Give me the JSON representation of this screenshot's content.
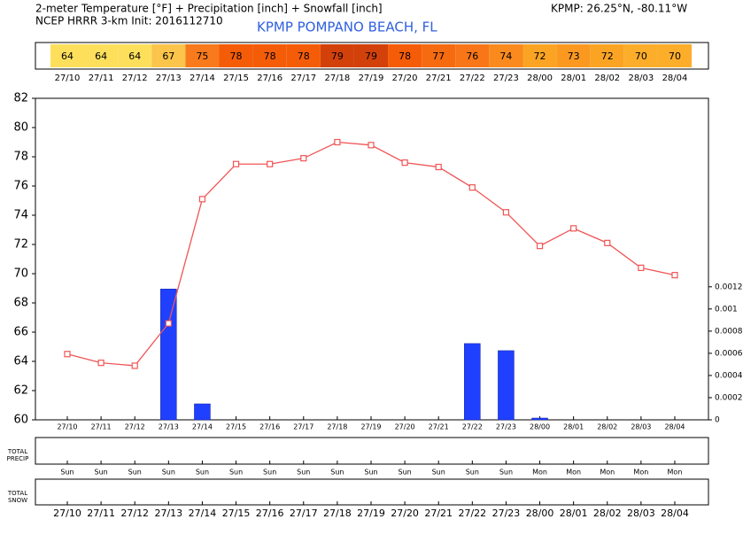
{
  "header": {
    "title": "2-meter Temperature [°F] + Precipitation [inch] + Snowfall [inch]",
    "model": "NCEP HRRR 3-km Init: 2016112710",
    "station": "KPMP POMPANO BEACH, FL",
    "location": "KPMP: 26.25°N, -80.11°W"
  },
  "chart_data": [
    {
      "type": "strip",
      "categories": [
        "27/10",
        "27/11",
        "27/12",
        "27/13",
        "27/14",
        "27/15",
        "27/16",
        "27/17",
        "27/18",
        "27/19",
        "27/20",
        "27/21",
        "27/22",
        "27/23",
        "28/00",
        "28/01",
        "28/02",
        "28/03",
        "28/04"
      ],
      "values": [
        64,
        64,
        64,
        67,
        75,
        78,
        78,
        78,
        79,
        79,
        78,
        77,
        76,
        74,
        72,
        73,
        72,
        70,
        70
      ],
      "colors": [
        "#fddf5c",
        "#fddf5c",
        "#fddf5c",
        "#fbc44a",
        "#f87a1c",
        "#f55c08",
        "#f55c08",
        "#f55c08",
        "#d3410a",
        "#d3410a",
        "#f55c08",
        "#f66a10",
        "#f97618",
        "#fa8a1e",
        "#fba423",
        "#fb9820",
        "#fba423",
        "#fcad2a",
        "#fcad2a"
      ]
    },
    {
      "type": "combo",
      "categories": [
        "27/10",
        "27/11",
        "27/12",
        "27/13",
        "27/14",
        "27/15",
        "27/16",
        "27/17",
        "27/18",
        "27/19",
        "27/20",
        "27/21",
        "27/22",
        "27/23",
        "28/00",
        "28/01",
        "28/02",
        "28/03",
        "28/04"
      ],
      "series": [
        {
          "type": "bar",
          "axis": "y2",
          "color": "#2040ff",
          "values": [
            0,
            0,
            0,
            0.00118,
            0.000144,
            0,
            0,
            0,
            0,
            0,
            0,
            0,
            0.000688,
            0.000624,
            1.6e-05,
            0,
            0,
            0,
            0
          ]
        },
        {
          "type": "line",
          "color": "#f05555",
          "values": [
            64.5,
            63.9,
            63.7,
            66.6,
            75.1,
            77.5,
            77.5,
            77.9,
            79.0,
            78.8,
            77.6,
            77.3,
            75.9,
            74.2,
            71.9,
            73.1,
            72.1,
            70.4,
            69.9
          ]
        }
      ],
      "ylim": [
        60,
        82
      ],
      "yticks": [
        60,
        62,
        64,
        66,
        68,
        70,
        72,
        74,
        76,
        78,
        80,
        82
      ],
      "y2lim": [
        0,
        0.0029
      ],
      "y2ticks": [
        0,
        0.0002,
        0.0004,
        0.0006,
        0.0008,
        0.001,
        0.0012
      ]
    },
    {
      "type": "panel",
      "label": [
        "TOTAL",
        "PRECIP"
      ],
      "days": [
        "Sun",
        "Sun",
        "Sun",
        "Sun",
        "Sun",
        "Sun",
        "Sun",
        "Sun",
        "Sun",
        "Sun",
        "Sun",
        "Sun",
        "Sun",
        "Sun",
        "Mon",
        "Mon",
        "Mon",
        "Mon",
        "Mon"
      ]
    },
    {
      "type": "panel",
      "label": [
        "TOTAL",
        "SNOW"
      ],
      "categories": [
        "27/10",
        "27/11",
        "27/12",
        "27/13",
        "27/14",
        "27/15",
        "27/16",
        "27/17",
        "27/18",
        "27/19",
        "27/20",
        "27/21",
        "27/22",
        "27/23",
        "28/00",
        "28/01",
        "28/02",
        "28/03",
        "28/04"
      ]
    }
  ]
}
